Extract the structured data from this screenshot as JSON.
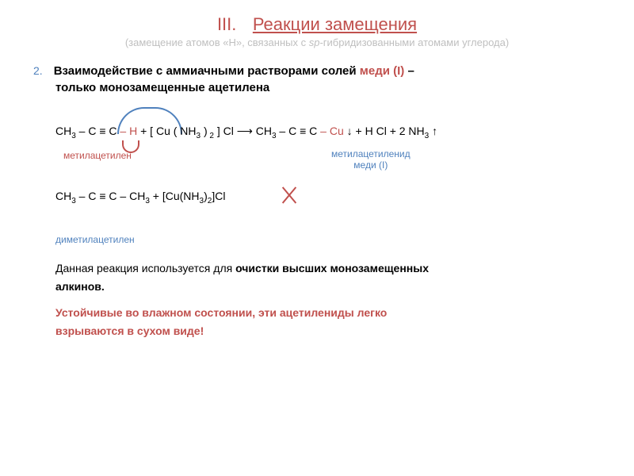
{
  "header": {
    "roman": "III.",
    "title": "Реакции замещения",
    "subtitle_prefix": "(замещение атомов «Н», связанных с ",
    "subtitle_italic": "sp",
    "subtitle_suffix": "-гибридизованными атомами углерода)"
  },
  "bullet": {
    "num": "2.",
    "text_pre": "Взаимодействие с аммиачными растворами солей ",
    "text_red": "меди (I)",
    "text_post": " –",
    "text_line2": "только монозамещенные ацетилена"
  },
  "eq1": {
    "lhs1": "CH",
    "lhs1_sub": "3",
    "lhs2": " – C ≡ C ",
    "lhs_h": "– H",
    "plus1": "   +   [ Cu ( NH",
    "nh_sub1": "3",
    "paren": " )",
    "two_sub": " 2",
    "cl": " ] Cl",
    "arrow": "   ⟶   ",
    "rhs1": "CH",
    "rhs1_sub": "3",
    "rhs2": " – C ≡ C ",
    "cu": "– Cu",
    "down": " ↓",
    "plus2": "   +   H Cl   +   2 NH",
    "nh_sub2": "3",
    "up": " ↑"
  },
  "labels": {
    "metacet": "метилацетилен",
    "metacu_l1": "метилацетиленид",
    "metacu_l2": "меди (I)",
    "dimet": "диметилацетилен"
  },
  "eq2": {
    "lhs": "CH",
    "s1": "3",
    "mid": " – C ≡ C – CH",
    "s2": "3",
    "plus": "   +   [Cu(NH",
    "s3": "3",
    "p2": ")",
    "s4": "2",
    "tail": "]Cl"
  },
  "para1_a": "Данная реакция используется для ",
  "para1_b": "очистки высших монозамещенных",
  "para1_c": "алкинов.",
  "para2_a": "Устойчивые во влажном состоянии, эти ацетилениды легко",
  "para2_b": "взрываются в сухом виде!",
  "colors": {
    "accent_red": "#c0504d",
    "accent_blue": "#4f81bd",
    "muted": "#bfbfbf"
  }
}
